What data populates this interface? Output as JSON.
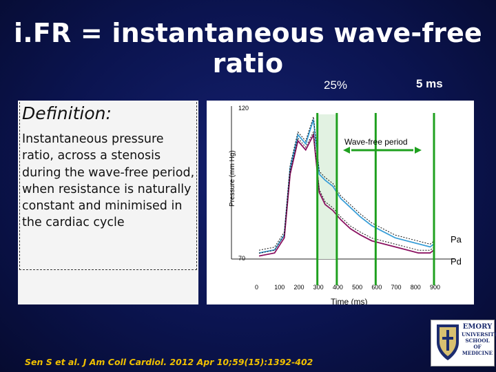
{
  "title": "i.FR = instantaneous wave-free ratio",
  "labels": {
    "pct": "25%",
    "ms": "5 ms"
  },
  "definition": {
    "heading": "Definition:",
    "body": "Instantaneous pressure ratio, across a stenosis during the wave-free period, when resistance is naturally constant and minimised in the cardiac cycle"
  },
  "chart": {
    "ylabel": "Pressure (mm Hg)",
    "xlabel": "Time (ms)",
    "y_ticks": [
      "120",
      "70"
    ],
    "x_ticks": [
      "0",
      "100",
      "200",
      "300",
      "400",
      "500",
      "600",
      "700",
      "800",
      "900"
    ],
    "annotation": "Wave-free period",
    "series_labels": {
      "pa": "Pa",
      "pd": "Pd"
    }
  },
  "citation": "Sen S et al. J Am Coll Cardiol. 2012 Apr 10;59(15):1392-402",
  "logo": {
    "line1": "EMORY",
    "line2": "UNIVERSITY",
    "line3": "SCHOOL OF",
    "line4": "MEDICINE"
  },
  "chart_data": {
    "type": "line",
    "x_unit": "ms",
    "ylabel": "Pressure (mm Hg)",
    "xlabel": "Time (ms)",
    "xlim": [
      0,
      900
    ],
    "ylim": [
      70,
      120
    ],
    "series": [
      {
        "name": "Pa",
        "x": [
          0,
          80,
          130,
          160,
          200,
          240,
          280,
          310,
          340,
          380,
          420,
          470,
          520,
          580,
          640,
          700,
          760,
          820,
          880,
          900
        ],
        "y": [
          72,
          73,
          78,
          100,
          111,
          108,
          116,
          98,
          96,
          94,
          90,
          87,
          84,
          81,
          79,
          77,
          76,
          75,
          74,
          75
        ]
      },
      {
        "name": "Pd",
        "x": [
          0,
          80,
          130,
          160,
          200,
          240,
          280,
          310,
          340,
          380,
          420,
          470,
          520,
          580,
          640,
          700,
          760,
          820,
          880,
          900
        ],
        "y": [
          71,
          72,
          77,
          98,
          109,
          106,
          111,
          92,
          88,
          86,
          83,
          80,
          78,
          76,
          75,
          74,
          73,
          72,
          72,
          73
        ]
      }
    ],
    "markers_ms": [
      300,
      400,
      600,
      900
    ],
    "grid": false
  },
  "colors": {
    "background": "#0b1450",
    "citation": "#f0c000",
    "pa": "#3a9fd8",
    "pd": "#8a1060",
    "marker": "#1fa01f"
  }
}
